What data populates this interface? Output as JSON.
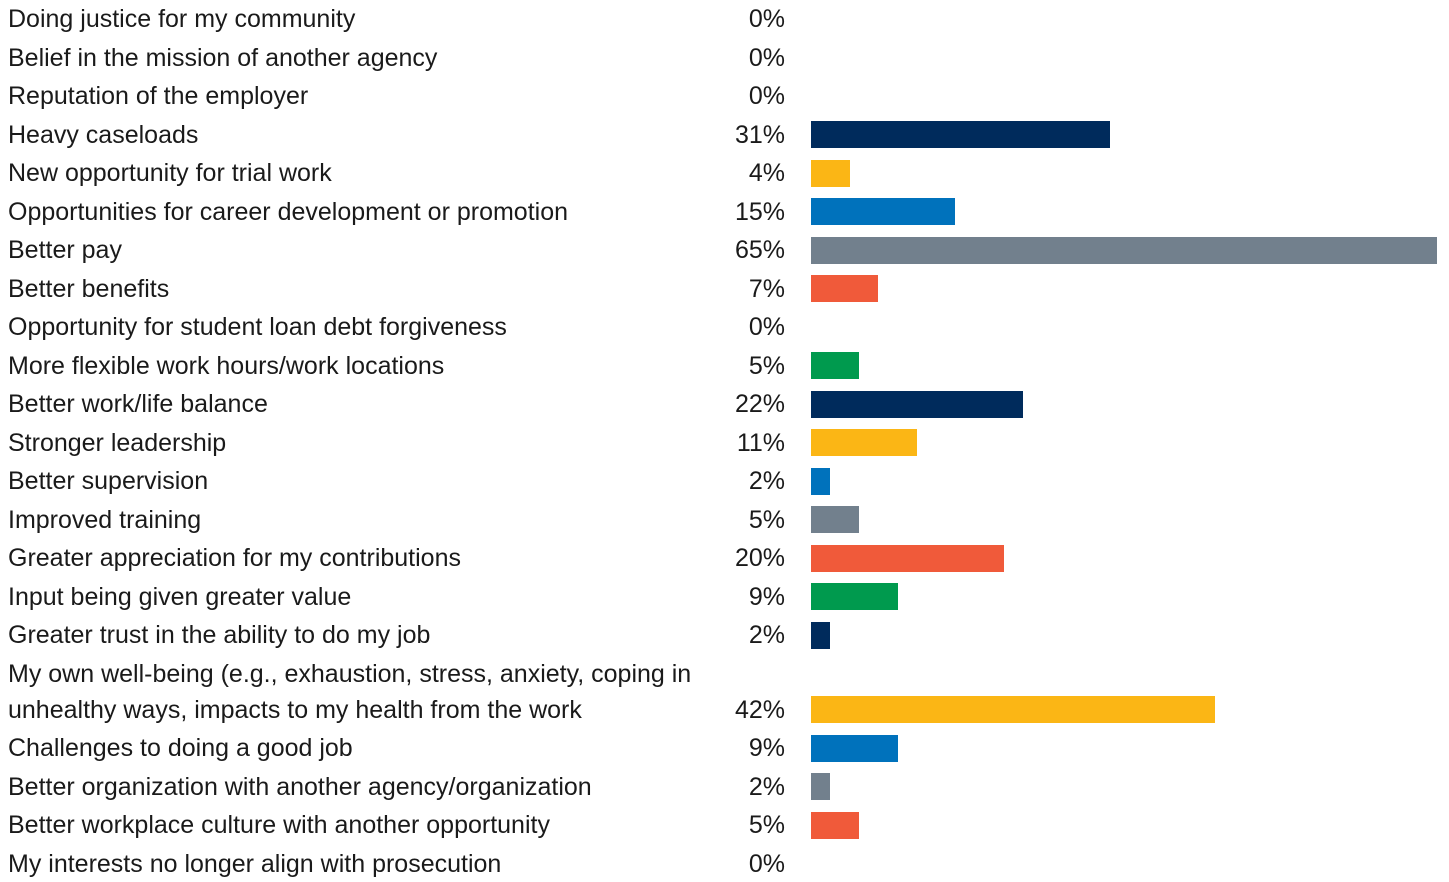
{
  "chart_data": {
    "type": "bar",
    "orientation": "horizontal",
    "categories": [
      "Doing justice for my community",
      "Belief in the mission of another agency",
      "Reputation of the employer",
      "Heavy caseloads",
      "New opportunity for trial work",
      "Opportunities for career development or promotion",
      "Better pay",
      "Better benefits",
      "Opportunity for student loan debt forgiveness",
      "More flexible work hours/work locations",
      "Better work/life balance",
      "Stronger leadership",
      "Better supervision",
      "Improved training",
      "Greater appreciation for my contributions",
      "Input being given greater value",
      "Greater trust in the ability to do my job",
      "My own well-being (e.g., exhaustion, stress, anxiety, coping in unhealthy ways, impacts to my health from the work",
      "Challenges to doing a good job",
      "Better organization with another agency/organization",
      "Better workplace culture with another opportunity",
      "My interests no longer align with prosecution"
    ],
    "values": [
      0,
      0,
      0,
      31,
      4,
      15,
      65,
      7,
      0,
      5,
      22,
      11,
      2,
      5,
      20,
      9,
      2,
      42,
      9,
      2,
      5,
      0
    ],
    "value_labels": [
      "0%",
      "0%",
      "0%",
      "31%",
      "4%",
      "15%",
      "65%",
      "7%",
      "0%",
      "5%",
      "22%",
      "11%",
      "2%",
      "5%",
      "20%",
      "9%",
      "2%",
      "42%",
      "9%",
      "2%",
      "5%",
      "0%"
    ],
    "colors": [
      "#002b5c",
      "#fbb615",
      "#0072bc",
      "#72808d",
      "#f05a3a",
      "#009a4e"
    ]
  }
}
